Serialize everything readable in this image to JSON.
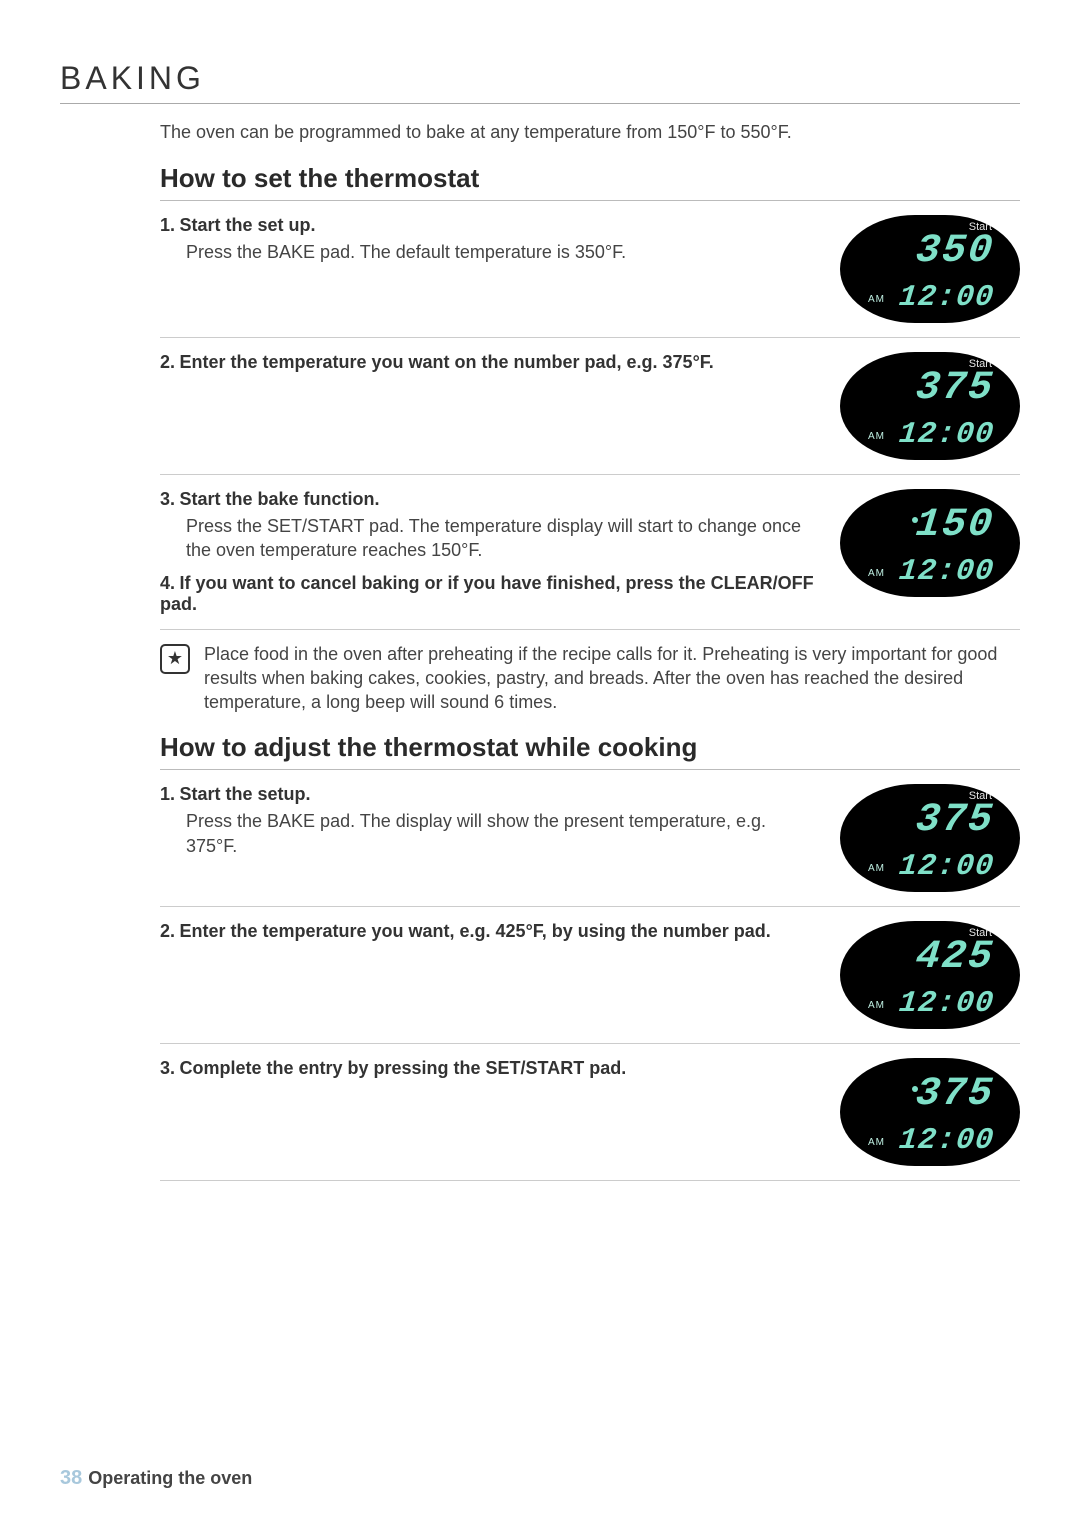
{
  "sectionTitle": "BAKING",
  "intro": "The oven can be programmed to bake at any temperature from 150°F to 550°F.",
  "heading1": "How to set the thermostat",
  "stepsA": [
    {
      "num": "1.",
      "title": "Start the set up.",
      "body": "Press the BAKE pad. The default temperature is 350°F.",
      "disp": {
        "start": "Start",
        "temp": "350",
        "am": "AM",
        "clock": "12:00",
        "dot": false
      }
    },
    {
      "num": "2.",
      "title": "Enter the temperature you want on the number pad, e.g. 375°F.",
      "body": "",
      "disp": {
        "start": "Start",
        "temp": "375",
        "am": "AM",
        "clock": "12:00",
        "dot": false
      }
    },
    {
      "num": "3.",
      "title": "Start the bake function.",
      "body": "Press the SET/START pad. The temperature display will start to change once the oven temperature reaches 150°F.",
      "disp": {
        "start": "",
        "temp": "150",
        "am": "AM",
        "clock": "12:00",
        "dot": true
      }
    },
    {
      "num": "4.",
      "title": "If you want to cancel baking or if you have finished, press the CLEAR/OFF pad.",
      "body": "",
      "disp": null
    }
  ],
  "note": "Place food in the oven after preheating if the recipe calls for it. Preheating is very important for good results when baking cakes, cookies, pastry, and breads. After the oven has reached the desired temperature, a long beep will sound 6 times.",
  "heading2": "How to adjust the thermostat while cooking",
  "stepsB": [
    {
      "num": "1.",
      "title": "Start the setup.",
      "body": "Press the BAKE pad. The display will show the present temperature, e.g. 375°F.",
      "disp": {
        "start": "Start",
        "temp": "375",
        "am": "AM",
        "clock": "12:00",
        "dot": false
      }
    },
    {
      "num": "2.",
      "title": "Enter the temperature you want, e.g. 425°F, by using the number pad.",
      "body": "",
      "disp": {
        "start": "Start",
        "temp": "425",
        "am": "AM",
        "clock": "12:00",
        "dot": false
      }
    },
    {
      "num": "3.",
      "title": "Complete the entry by pressing the SET/START pad.",
      "body": "",
      "disp": {
        "start": "",
        "temp": "375",
        "am": "AM",
        "clock": "12:00",
        "dot": true
      }
    }
  ],
  "footer": {
    "page": "38",
    "label": "Operating the oven"
  },
  "colors": {
    "digit": "#7fe0c8",
    "bg": "#ffffff",
    "text": "#333333",
    "dispBg": "#000000",
    "pageNum": "#a8c8dc"
  }
}
